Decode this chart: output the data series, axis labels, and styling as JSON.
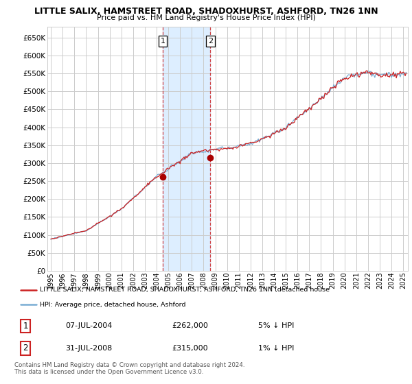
{
  "title": "LITTLE SALIX, HAMSTREET ROAD, SHADOXHURST, ASHFORD, TN26 1NN",
  "subtitle": "Price paid vs. HM Land Registry's House Price Index (HPI)",
  "ylim": [
    0,
    680000
  ],
  "yticks": [
    0,
    50000,
    100000,
    150000,
    200000,
    250000,
    300000,
    350000,
    400000,
    450000,
    500000,
    550000,
    600000,
    650000
  ],
  "xlim_start": 1994.7,
  "xlim_end": 2025.4,
  "legend_line1": "LITTLE SALIX, HAMSTREET ROAD, SHADOXHURST, ASHFORD, TN26 1NN (detached house",
  "legend_line2": "HPI: Average price, detached house, Ashford",
  "sale1_label": "1",
  "sale1_date": "07-JUL-2004",
  "sale1_price": "£262,000",
  "sale1_hpi": "5% ↓ HPI",
  "sale2_label": "2",
  "sale2_date": "31-JUL-2008",
  "sale2_price": "£315,000",
  "sale2_hpi": "1% ↓ HPI",
  "footer": "Contains HM Land Registry data © Crown copyright and database right 2024.\nThis data is licensed under the Open Government Licence v3.0.",
  "sale1_x": 2004.52,
  "sale1_y": 262000,
  "sale2_x": 2008.58,
  "sale2_y": 315000,
  "hpi_color": "#7aadd4",
  "price_color": "#cc2222",
  "sale_dot_color": "#aa0000",
  "shaded_region_color": "#ddeeff",
  "sale1_vline_x": 2004.52,
  "sale2_vline_x": 2008.58,
  "background_color": "#ffffff",
  "grid_color": "#cccccc"
}
